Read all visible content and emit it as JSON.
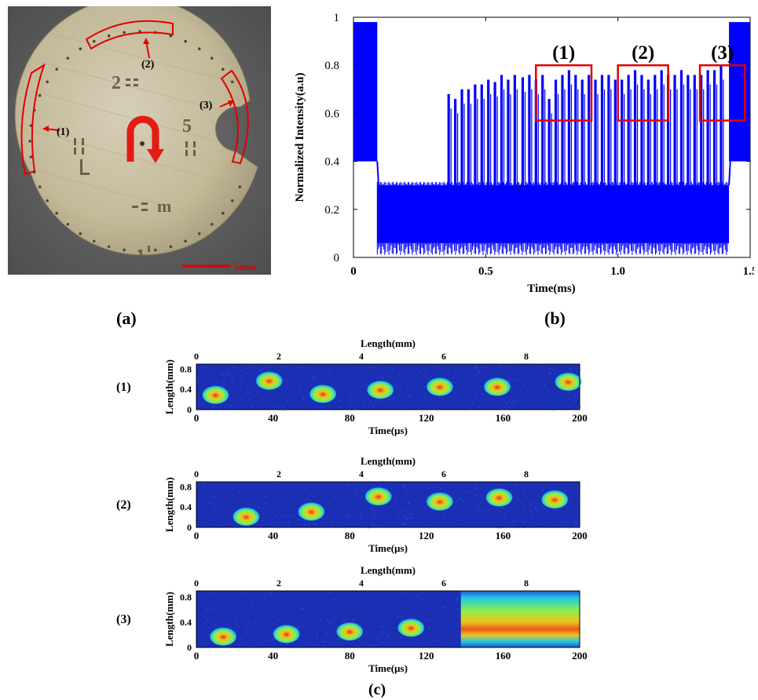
{
  "panels": {
    "a": {
      "label": "(a)",
      "scale_bar": "5mm",
      "callouts": [
        "(1)",
        "(2)",
        "(3)"
      ]
    },
    "b": {
      "label": "(b)",
      "box_labels": [
        "(1)",
        "(2)",
        "(3)"
      ]
    },
    "c": {
      "label": "(c)",
      "row_labels": [
        "(1)",
        "(2)",
        "(3)"
      ]
    }
  },
  "colors": {
    "signal": "#0000ff",
    "highlight": "#e00000",
    "heatmap_bg": "#1b2fb4"
  },
  "chart_data": [
    {
      "type": "line",
      "panel": "b",
      "xlabel": "Time(ms)",
      "ylabel": "Normalized Intensity(a.u)",
      "xlim": [
        0,
        1.5
      ],
      "ylim": [
        0,
        1
      ],
      "x_ticks": [
        "0",
        "0.5",
        "1.0",
        "1.5"
      ],
      "y_ticks": [
        "0",
        "0.2",
        "0.4",
        "0.6",
        "0.8",
        "1"
      ],
      "baseline_band": [
        0.06,
        0.3
      ],
      "high_band_edges": [
        0.4,
        0.98
      ],
      "high_band_x_ranges": [
        [
          0,
          0.09
        ],
        [
          1.42,
          1.5
        ]
      ],
      "low_band_x_range": [
        0.09,
        1.42
      ],
      "pulse_train_start": 0.36,
      "pulse_peaks": [
        {
          "x": 0.36,
          "y": 0.68
        },
        {
          "x": 0.385,
          "y": 0.66
        },
        {
          "x": 0.41,
          "y": 0.7
        },
        {
          "x": 0.435,
          "y": 0.7
        },
        {
          "x": 0.46,
          "y": 0.72
        },
        {
          "x": 0.485,
          "y": 0.72
        },
        {
          "x": 0.51,
          "y": 0.74
        },
        {
          "x": 0.535,
          "y": 0.73
        },
        {
          "x": 0.56,
          "y": 0.76
        },
        {
          "x": 0.585,
          "y": 0.74
        },
        {
          "x": 0.61,
          "y": 0.76
        },
        {
          "x": 0.64,
          "y": 0.75
        },
        {
          "x": 0.665,
          "y": 0.76
        },
        {
          "x": 0.69,
          "y": 0.74
        },
        {
          "x": 0.715,
          "y": 0.76
        },
        {
          "x": 0.74,
          "y": 0.66
        },
        {
          "x": 0.765,
          "y": 0.74
        },
        {
          "x": 0.79,
          "y": 0.76
        },
        {
          "x": 0.815,
          "y": 0.78
        },
        {
          "x": 0.84,
          "y": 0.76
        },
        {
          "x": 0.865,
          "y": 0.74
        },
        {
          "x": 0.89,
          "y": 0.76
        },
        {
          "x": 0.915,
          "y": 0.74
        },
        {
          "x": 0.94,
          "y": 0.76
        },
        {
          "x": 0.965,
          "y": 0.76
        },
        {
          "x": 0.99,
          "y": 0.74
        },
        {
          "x": 1.015,
          "y": 0.74
        },
        {
          "x": 1.04,
          "y": 0.76
        },
        {
          "x": 1.065,
          "y": 0.78
        },
        {
          "x": 1.09,
          "y": 0.76
        },
        {
          "x": 1.115,
          "y": 0.74
        },
        {
          "x": 1.14,
          "y": 0.76
        },
        {
          "x": 1.165,
          "y": 0.78
        },
        {
          "x": 1.19,
          "y": 0.76
        },
        {
          "x": 1.215,
          "y": 0.76
        },
        {
          "x": 1.24,
          "y": 0.78
        },
        {
          "x": 1.265,
          "y": 0.76
        },
        {
          "x": 1.29,
          "y": 0.76
        },
        {
          "x": 1.315,
          "y": 0.76
        },
        {
          "x": 1.34,
          "y": 0.78
        },
        {
          "x": 1.365,
          "y": 0.78
        },
        {
          "x": 1.39,
          "y": 0.8
        }
      ],
      "highlight_boxes": [
        {
          "label": "(1)",
          "x": [
            0.69,
            0.9
          ],
          "y": [
            0.57,
            0.8
          ]
        },
        {
          "label": "(2)",
          "x": [
            1.0,
            1.19
          ],
          "y": [
            0.57,
            0.8
          ]
        },
        {
          "label": "(3)",
          "x": [
            1.31,
            1.48
          ],
          "y": [
            0.57,
            0.8
          ]
        }
      ]
    },
    {
      "type": "heatmap",
      "panel": "c",
      "row": "(1)",
      "xlabel": "Time(µs)",
      "ylabel": "Length(mm)",
      "top_xlabel": "Length(mm)",
      "xlim": [
        0,
        200
      ],
      "ylim": [
        0,
        0.9
      ],
      "x_ticks": [
        "0",
        "40",
        "80",
        "120",
        "160",
        "200"
      ],
      "top_ticks": [
        "0",
        "2",
        "4",
        "6",
        "8"
      ],
      "y_ticks": [
        "0",
        "0.4",
        "0.8"
      ],
      "blobs": [
        {
          "t": 10,
          "len": 0.3
        },
        {
          "t": 38,
          "len": 0.58
        },
        {
          "t": 66,
          "len": 0.32
        },
        {
          "t": 96,
          "len": 0.4
        },
        {
          "t": 127,
          "len": 0.46
        },
        {
          "t": 157,
          "len": 0.46
        },
        {
          "t": 194,
          "len": 0.56
        }
      ]
    },
    {
      "type": "heatmap",
      "panel": "c",
      "row": "(2)",
      "xlabel": "Time(µs)",
      "ylabel": "Length(mm)",
      "top_xlabel": "Length(mm)",
      "xlim": [
        0,
        200
      ],
      "ylim": [
        0,
        0.9
      ],
      "x_ticks": [
        "0",
        "40",
        "80",
        "120",
        "160",
        "200"
      ],
      "top_ticks": [
        "0",
        "2",
        "4",
        "6",
        "8"
      ],
      "y_ticks": [
        "0",
        "0.4",
        "0.8"
      ],
      "blobs": [
        {
          "t": 26,
          "len": 0.22
        },
        {
          "t": 60,
          "len": 0.32
        },
        {
          "t": 95,
          "len": 0.62
        },
        {
          "t": 127,
          "len": 0.52
        },
        {
          "t": 158,
          "len": 0.6
        },
        {
          "t": 187,
          "len": 0.56
        }
      ]
    },
    {
      "type": "heatmap",
      "panel": "c",
      "row": "(3)",
      "xlabel": "Time(µs)",
      "ylabel": "Length(mm)",
      "top_xlabel": "Length(mm)",
      "xlim": [
        0,
        200
      ],
      "ylim": [
        0,
        0.9
      ],
      "x_ticks": [
        "0",
        "40",
        "80",
        "120",
        "160",
        "200"
      ],
      "top_ticks": [
        "0",
        "2",
        "4",
        "6",
        "8"
      ],
      "y_ticks": [
        "0",
        "0.4",
        "0.8"
      ],
      "blobs": [
        {
          "t": 14,
          "len": 0.18
        },
        {
          "t": 47,
          "len": 0.22
        },
        {
          "t": 80,
          "len": 0.26
        },
        {
          "t": 112,
          "len": 0.32
        }
      ],
      "saturated_from": 138
    }
  ]
}
